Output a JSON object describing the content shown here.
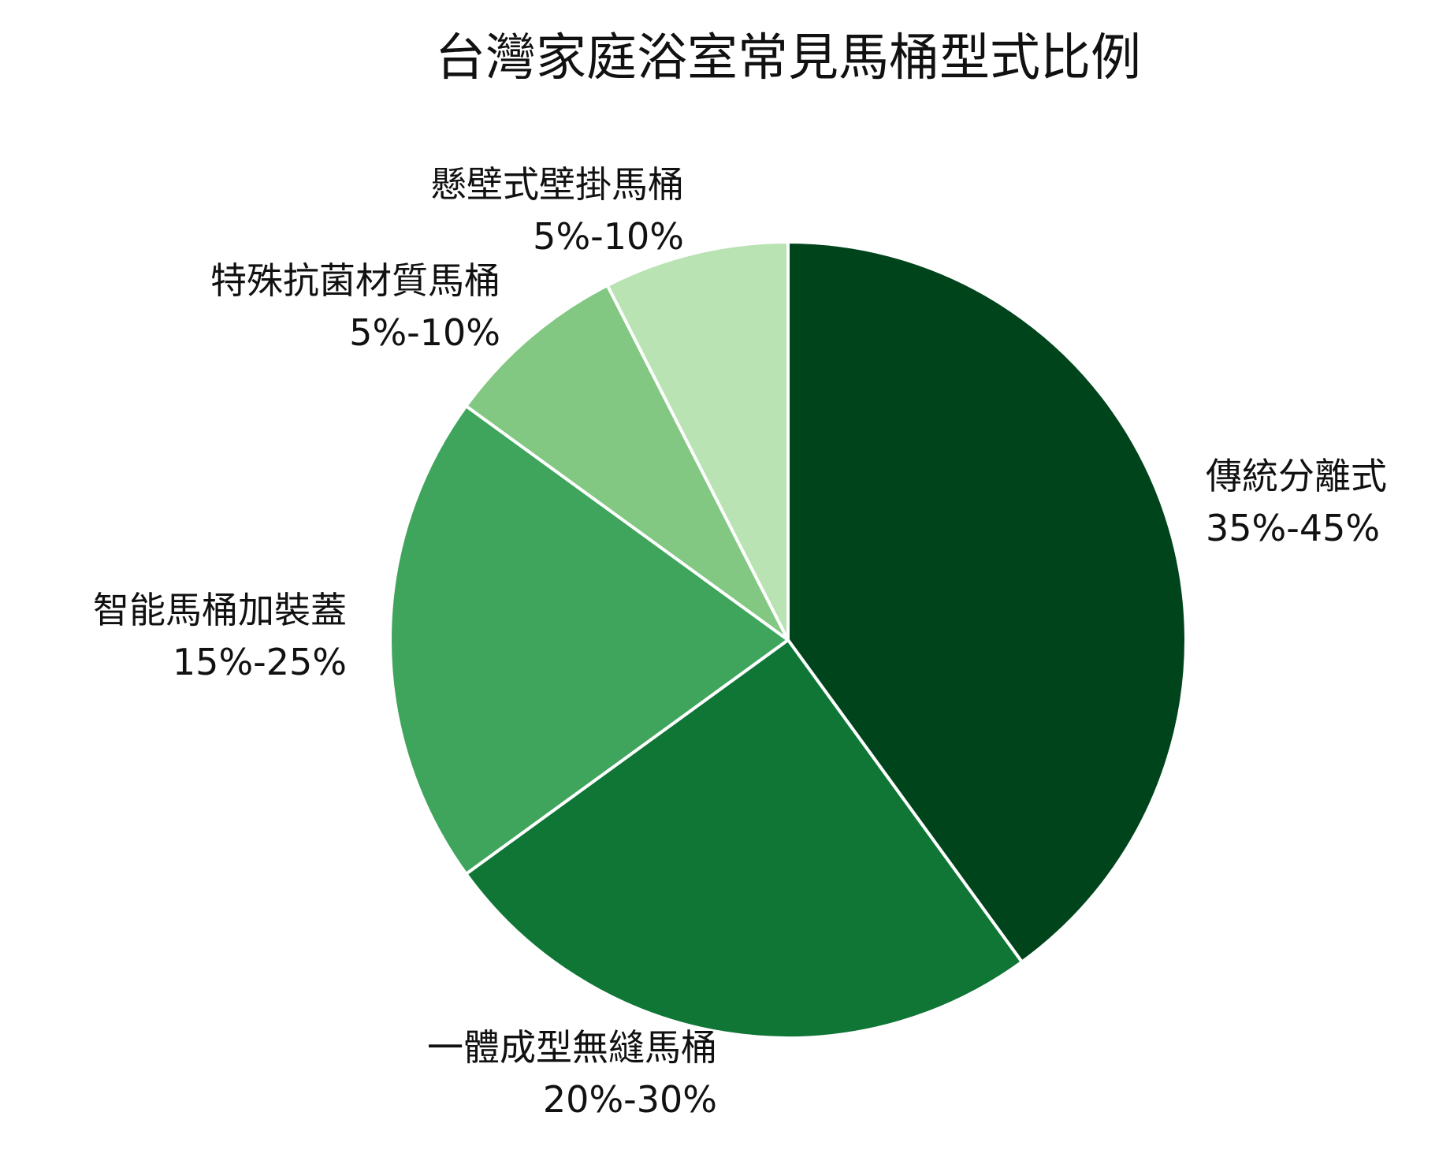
{
  "chart_data": {
    "type": "pie",
    "title": "台灣家庭浴室常見馬桶型式比例",
    "start": "top",
    "direction": "clockwise",
    "slices": [
      {
        "label": "傳統分離式",
        "range_label": "35%-45%",
        "value": 40,
        "color": "#00441b"
      },
      {
        "label": "一體成型無縫馬桶",
        "range_label": "20%-30%",
        "value": 25,
        "color": "#0f7636"
      },
      {
        "label": "智能馬桶加裝蓋",
        "range_label": "15%-25%",
        "value": 20,
        "color": "#3fa55c"
      },
      {
        "label": "特殊抗菌材質馬桶",
        "range_label": "5%-10%",
        "value": 7.5,
        "color": "#82c882"
      },
      {
        "label": "懸壁式壁掛馬桶",
        "range_label": "5%-10%",
        "value": 7.5,
        "color": "#b9e3b3"
      }
    ]
  }
}
